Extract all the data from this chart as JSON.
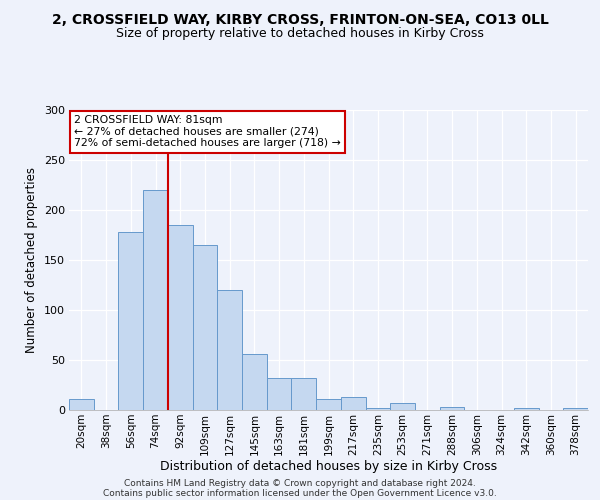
{
  "title_line1": "2, CROSSFIELD WAY, KIRBY CROSS, FRINTON-ON-SEA, CO13 0LL",
  "title_line2": "Size of property relative to detached houses in Kirby Cross",
  "xlabel": "Distribution of detached houses by size in Kirby Cross",
  "ylabel": "Number of detached properties",
  "categories": [
    "20sqm",
    "38sqm",
    "56sqm",
    "74sqm",
    "92sqm",
    "109sqm",
    "127sqm",
    "145sqm",
    "163sqm",
    "181sqm",
    "199sqm",
    "217sqm",
    "235sqm",
    "253sqm",
    "271sqm",
    "288sqm",
    "306sqm",
    "324sqm",
    "342sqm",
    "360sqm",
    "378sqm"
  ],
  "values": [
    11,
    0,
    178,
    220,
    185,
    165,
    120,
    56,
    32,
    32,
    11,
    13,
    2,
    7,
    0,
    3,
    0,
    0,
    2,
    0,
    2
  ],
  "bar_color": "#c5d8f0",
  "bar_edge_color": "#6699cc",
  "ylim": [
    0,
    300
  ],
  "yticks": [
    0,
    50,
    100,
    150,
    200,
    250,
    300
  ],
  "vline_x_index": 3.5,
  "vline_color": "#cc0000",
  "annotation_text": "2 CROSSFIELD WAY: 81sqm\n← 27% of detached houses are smaller (274)\n72% of semi-detached houses are larger (718) →",
  "annotation_box_color": "#ffffff",
  "annotation_box_edge": "#cc0000",
  "footer_line1": "Contains HM Land Registry data © Crown copyright and database right 2024.",
  "footer_line2": "Contains public sector information licensed under the Open Government Licence v3.0.",
  "background_color": "#eef2fb",
  "grid_color": "#ffffff",
  "title_fontsize": 10,
  "subtitle_fontsize": 9,
  "ylabel_fontsize": 8.5,
  "xlabel_fontsize": 9,
  "tick_fontsize": 7.5,
  "footer_fontsize": 6.5
}
